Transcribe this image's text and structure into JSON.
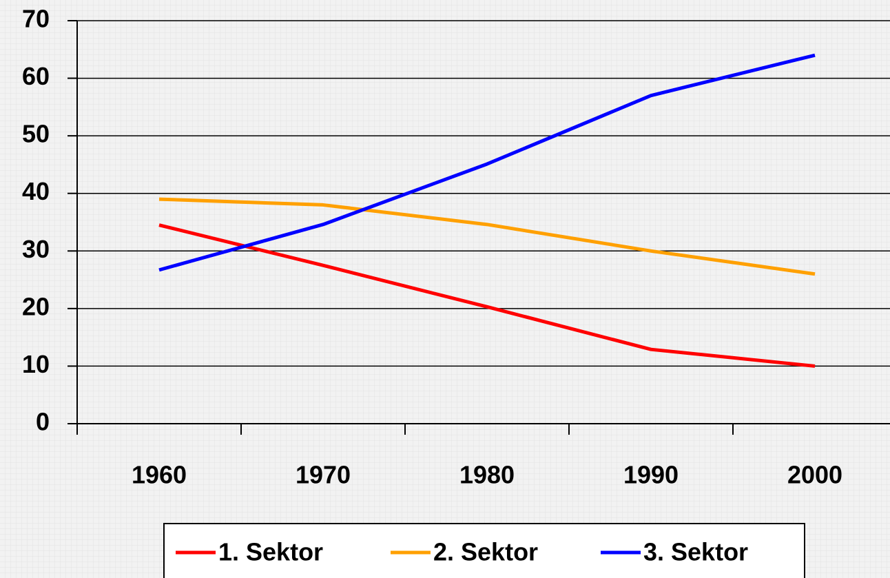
{
  "chart_data": {
    "type": "line",
    "categories": [
      "1960",
      "1970",
      "1980",
      "1990",
      "2000"
    ],
    "series": [
      {
        "name": "1. Sektor",
        "color": "#ff0000",
        "values": [
          34.5,
          27.5,
          20.3,
          12.9,
          10
        ]
      },
      {
        "name": "2. Sektor",
        "color": "#ffa000",
        "values": [
          39,
          38,
          34.6,
          30,
          26
        ]
      },
      {
        "name": "3. Sektor",
        "color": "#0000ff",
        "values": [
          26.7,
          34.6,
          45.1,
          57,
          64
        ]
      }
    ],
    "ylim": [
      0,
      70
    ],
    "yticks": [
      0,
      10,
      20,
      30,
      40,
      50,
      60,
      70
    ],
    "grid": true,
    "legend": "bottom"
  }
}
